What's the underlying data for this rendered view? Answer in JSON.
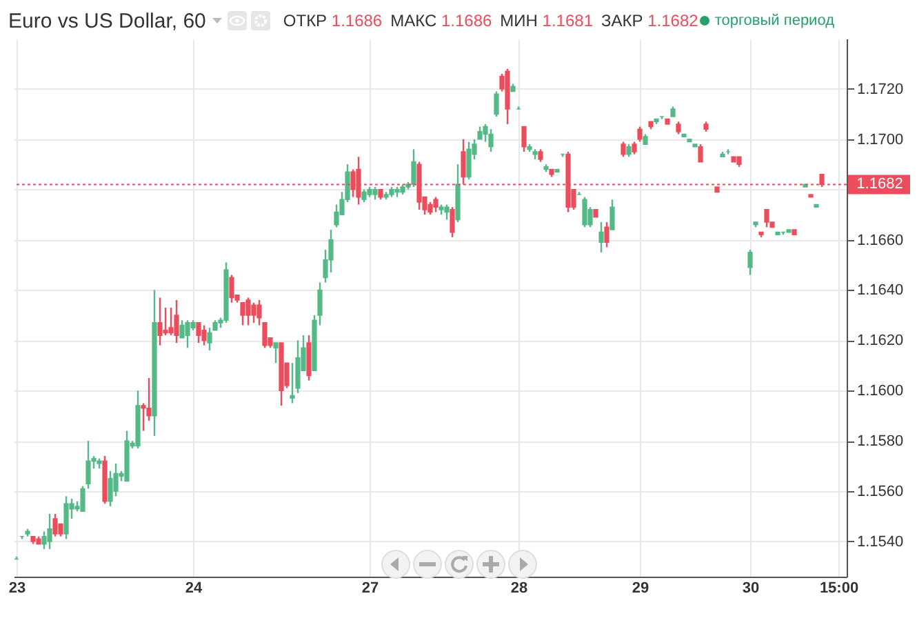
{
  "chart_data": {
    "type": "candlestick",
    "title": "Euro vs US Dollar, 60",
    "annotations": [
      "ОТКР 1.1686",
      "МАКС 1.1686",
      "МИН 1.1681",
      "ЗАКР 1.1682",
      "торговый период"
    ],
    "categories": [
      "23",
      null,
      null,
      null,
      null,
      null,
      null,
      null,
      null,
      null,
      null,
      null,
      null,
      null,
      null,
      null,
      null,
      null,
      null,
      null,
      null,
      null,
      null,
      null,
      null,
      null,
      null,
      null,
      null,
      null,
      null,
      null,
      "24",
      null,
      null,
      null,
      null,
      null,
      null,
      null,
      null,
      null,
      null,
      null,
      null,
      null,
      null,
      null,
      null,
      null,
      null,
      null,
      null,
      null,
      null,
      null,
      null,
      null,
      null,
      null,
      null,
      null,
      null,
      null,
      "27",
      null,
      null,
      null,
      null,
      null,
      null,
      null,
      null,
      null,
      null,
      null,
      null,
      null,
      null,
      null,
      null,
      null,
      null,
      null,
      null,
      null,
      null,
      null,
      null,
      null,
      null,
      "28",
      null,
      null,
      null,
      null,
      null,
      null,
      null,
      null,
      null,
      null,
      null,
      null,
      null,
      null,
      null,
      null,
      null,
      null,
      null,
      null,
      null,
      "29",
      null,
      null,
      null,
      null,
      null,
      null,
      null,
      null,
      null,
      null,
      null,
      null,
      null,
      null,
      null,
      null,
      null,
      null,
      null,
      "30",
      null,
      null,
      null,
      null,
      null,
      null,
      null,
      null,
      null,
      null,
      null,
      null,
      null,
      null,
      null,
      "15:00",
      null
    ],
    "ohlc": [
      [
        1.1533,
        1.1534,
        1.1533,
        1.1533
      ],
      [
        1.1542,
        1.1542,
        1.1541,
        1.1542
      ],
      [
        1.1543,
        1.1545,
        1.1542,
        1.1544
      ],
      [
        1.1542,
        1.1542,
        1.1539,
        1.154
      ],
      [
        1.1541,
        1.1542,
        1.1539,
        1.1539
      ],
      [
        1.1539,
        1.1544,
        1.1537,
        1.1542
      ],
      [
        1.154,
        1.1551,
        1.1537,
        1.1545
      ],
      [
        1.1549,
        1.1551,
        1.1542,
        1.1543
      ],
      [
        1.1547,
        1.1547,
        1.1542,
        1.1543
      ],
      [
        1.1543,
        1.1558,
        1.1541,
        1.1555
      ],
      [
        1.1553,
        1.1557,
        1.1549,
        1.1555
      ],
      [
        1.1553,
        1.1556,
        1.1552,
        1.1554
      ],
      [
        1.1552,
        1.1562,
        1.1552,
        1.1561
      ],
      [
        1.1563,
        1.158,
        1.1561,
        1.1572
      ],
      [
        1.1572,
        1.1574,
        1.1569,
        1.1573
      ],
      [
        1.1571,
        1.1573,
        1.1569,
        1.1572
      ],
      [
        1.1572,
        1.1574,
        1.1555,
        1.1556
      ],
      [
        1.1556,
        1.1568,
        1.1554,
        1.1565
      ],
      [
        1.156,
        1.1571,
        1.1558,
        1.1567
      ],
      [
        1.1566,
        1.1568,
        1.1564,
        1.1567
      ],
      [
        1.1564,
        1.1584,
        1.1564,
        1.158
      ],
      [
        1.1578,
        1.158,
        1.1577,
        1.1579
      ],
      [
        1.1578,
        1.16,
        1.1577,
        1.1594
      ],
      [
        1.1594,
        1.1595,
        1.1584,
        1.1593
      ],
      [
        1.1593,
        1.1605,
        1.1588,
        1.159
      ],
      [
        1.159,
        1.164,
        1.1582,
        1.1627
      ],
      [
        1.1627,
        1.1637,
        1.1618,
        1.1622
      ],
      [
        1.1624,
        1.1633,
        1.1622,
        1.1623
      ],
      [
        1.1625,
        1.1633,
        1.1622,
        1.1623
      ],
      [
        1.163,
        1.1636,
        1.1619,
        1.1622
      ],
      [
        1.1621,
        1.1628,
        1.1621,
        1.1626
      ],
      [
        1.1622,
        1.1628,
        1.1617,
        1.1627
      ],
      [
        1.1625,
        1.1628,
        1.1624,
        1.1627
      ],
      [
        1.1627,
        1.1627,
        1.1619,
        1.1622
      ],
      [
        1.1624,
        1.1626,
        1.1618,
        1.162
      ],
      [
        1.1619,
        1.1625,
        1.1616,
        1.1623
      ],
      [
        1.1624,
        1.1628,
        1.1624,
        1.1627
      ],
      [
        1.1627,
        1.1629,
        1.1625,
        1.1628
      ],
      [
        1.1628,
        1.1651,
        1.1627,
        1.1648
      ],
      [
        1.1645,
        1.1646,
        1.1635,
        1.1637
      ],
      [
        1.1638,
        1.1638,
        1.1635,
        1.1636
      ],
      [
        1.1635,
        1.1635,
        1.1626,
        1.163
      ],
      [
        1.1636,
        1.1637,
        1.1626,
        1.163
      ],
      [
        1.1634,
        1.1635,
        1.1627,
        1.163
      ],
      [
        1.1634,
        1.1636,
        1.1626,
        1.1629
      ],
      [
        1.1627,
        1.1627,
        1.1617,
        1.1618
      ],
      [
        1.1621,
        1.1621,
        1.1617,
        1.1618
      ],
      [
        1.1617,
        1.1619,
        1.1611,
        1.1619
      ],
      [
        1.1619,
        1.1619,
        1.1594,
        1.16
      ],
      [
        1.1611,
        1.1611,
        1.1601,
        1.1602
      ],
      [
        1.1597,
        1.1611,
        1.1595,
        1.1598
      ],
      [
        1.1601,
        1.162,
        1.1599,
        1.1613
      ],
      [
        1.1608,
        1.1622,
        1.1608,
        1.1617
      ],
      [
        1.1619,
        1.1622,
        1.1604,
        1.1606
      ],
      [
        1.1608,
        1.163,
        1.1608,
        1.1628
      ],
      [
        1.163,
        1.1643,
        1.1626,
        1.164
      ],
      [
        1.1645,
        1.1656,
        1.1643,
        1.1652
      ],
      [
        1.1652,
        1.1664,
        1.1647,
        1.166
      ],
      [
        1.1666,
        1.1674,
        1.1665,
        1.1671
      ],
      [
        1.167,
        1.1679,
        1.167,
        1.1676
      ],
      [
        1.1676,
        1.169,
        1.1675,
        1.1687
      ],
      [
        1.1687,
        1.1688,
        1.1677,
        1.168
      ],
      [
        1.1688,
        1.1693,
        1.1674,
        1.1677
      ],
      [
        1.1676,
        1.168,
        1.1675,
        1.1679
      ],
      [
        1.1678,
        1.1681,
        1.1677,
        1.168
      ],
      [
        1.1678,
        1.1681,
        1.1676,
        1.168
      ],
      [
        1.168,
        1.168,
        1.1676,
        1.1677
      ],
      [
        1.1677,
        1.1679,
        1.1676,
        1.1678
      ],
      [
        1.1678,
        1.1681,
        1.1677,
        1.168
      ],
      [
        1.1679,
        1.1681,
        1.1677,
        1.168
      ],
      [
        1.1679,
        1.1682,
        1.1678,
        1.1681
      ],
      [
        1.1681,
        1.1683,
        1.168,
        1.1682
      ],
      [
        1.1682,
        1.1696,
        1.1681,
        1.1691
      ],
      [
        1.169,
        1.1691,
        1.1672,
        1.1675
      ],
      [
        1.1677,
        1.1677,
        1.167,
        1.1672
      ],
      [
        1.1674,
        1.1675,
        1.167,
        1.1671
      ],
      [
        1.1676,
        1.1677,
        1.1671,
        1.1673
      ],
      [
        1.1672,
        1.1674,
        1.167,
        1.1673
      ],
      [
        1.1671,
        1.1674,
        1.1668,
        1.1673
      ],
      [
        1.1672,
        1.1673,
        1.1661,
        1.1663
      ],
      [
        1.1668,
        1.169,
        1.1667,
        1.1682
      ],
      [
        1.1695,
        1.17,
        1.1682,
        1.1685
      ],
      [
        1.1685,
        1.1699,
        1.1684,
        1.1696
      ],
      [
        1.1694,
        1.17,
        1.1692,
        1.1698
      ],
      [
        1.17,
        1.1705,
        1.17,
        1.1703
      ],
      [
        1.1702,
        1.1706,
        1.1699,
        1.1705
      ],
      [
        1.1697,
        1.1704,
        1.1695,
        1.1702
      ],
      [
        1.171,
        1.1719,
        1.1709,
        1.1718
      ],
      [
        1.1725,
        1.1726,
        1.1719,
        1.172
      ],
      [
        1.1727,
        1.1728,
        1.1706,
        1.1712
      ],
      [
        1.1719,
        1.1722,
        1.1719,
        1.1721
      ],
      [
        1.1712,
        1.1713,
        1.1712,
        1.1712
      ],
      [
        1.1705,
        1.1705,
        1.1695,
        1.1697
      ],
      [
        1.1696,
        1.1698,
        1.1695,
        1.1697
      ],
      [
        1.1694,
        1.1696,
        1.1692,
        1.1695
      ],
      [
        1.1695,
        1.1696,
        1.1691,
        1.1692
      ],
      [
        1.1688,
        1.169,
        1.1687,
        1.1689
      ],
      [
        1.1688,
        1.1688,
        1.1685,
        1.1686
      ],
      [
        1.1687,
        1.1688,
        1.1687,
        1.1688
      ],
      [
        1.1694,
        1.1694,
        1.1693,
        1.1694
      ],
      [
        1.1694,
        1.1695,
        1.1671,
        1.1673
      ],
      [
        1.168,
        1.168,
        1.1672,
        1.1673
      ],
      [
        1.1678,
        1.1679,
        1.1678,
        1.1678
      ],
      [
        1.1666,
        1.1677,
        1.1665,
        1.1676
      ],
      [
        1.1666,
        1.1673,
        1.1665,
        1.1672
      ],
      [
        1.1672,
        1.1672,
        1.1669,
        1.1669
      ],
      [
        1.1659,
        1.1667,
        1.1655,
        1.1663
      ],
      [
        1.1665,
        1.1667,
        1.1657,
        1.1659
      ],
      [
        1.1664,
        1.1676,
        1.1664,
        1.1673
      ],
      null,
      [
        1.1698,
        1.1699,
        1.1693,
        1.1694
      ],
      [
        1.1694,
        1.1698,
        1.1693,
        1.1697
      ],
      [
        1.1698,
        1.1699,
        1.1694,
        1.1695
      ],
      [
        1.1704,
        1.1705,
        1.1699,
        1.17
      ],
      [
        1.1698,
        1.1702,
        1.1698,
        1.1701
      ],
      [
        1.1707,
        1.1707,
        1.1704,
        1.1705
      ],
      [
        1.1707,
        1.1708,
        1.1706,
        1.1708
      ],
      [
        1.1709,
        1.1709,
        1.1708,
        1.1709
      ],
      [
        1.1708,
        1.1708,
        1.1706,
        1.1706
      ],
      [
        1.1709,
        1.1713,
        1.1709,
        1.1712
      ],
      [
        1.1706,
        1.1707,
        1.1702,
        1.1703
      ],
      [
        1.1701,
        1.1702,
        1.1701,
        1.1702
      ],
      [
        1.1699,
        1.17,
        1.1699,
        1.17
      ],
      [
        1.1697,
        1.1698,
        1.1697,
        1.1698
      ],
      [
        1.1697,
        1.1698,
        1.1691,
        1.1691
      ],
      [
        1.1706,
        1.1707,
        1.1703,
        1.1704
      ],
      null,
      [
        1.1681,
        1.1681,
        1.1679,
        1.1679
      ],
      [
        1.1693,
        1.1695,
        1.1693,
        1.1694
      ],
      [
        1.1695,
        1.1696,
        1.1694,
        1.1695
      ],
      [
        1.1693,
        1.1693,
        1.1691,
        1.1691
      ],
      [
        1.1693,
        1.1693,
        1.1689,
        1.169
      ],
      null,
      [
        1.1649,
        1.1656,
        1.1646,
        1.1655
      ],
      [
        1.1666,
        1.1667,
        1.1665,
        1.1667
      ],
      [
        1.1663,
        1.1663,
        1.1661,
        1.1662
      ],
      [
        1.1672,
        1.1672,
        1.1665,
        1.1667
      ],
      [
        1.1667,
        1.1667,
        1.1665,
        1.1665
      ],
      [
        1.1662,
        1.1663,
        1.1662,
        1.1663
      ],
      [
        1.1663,
        1.1663,
        1.1662,
        1.1663
      ],
      [
        1.1663,
        1.1664,
        1.1663,
        1.1664
      ],
      [
        1.1664,
        1.1664,
        1.1662,
        1.1662
      ],
      null,
      [
        1.1681,
        1.1682,
        1.1681,
        1.1682
      ],
      [
        1.1678,
        1.1678,
        1.1677,
        1.1677
      ],
      [
        1.1673,
        1.1674,
        1.1673,
        1.1674
      ],
      [
        1.1686,
        1.1686,
        1.1681,
        1.1682
      ],
      null,
      null,
      null,
      null
    ],
    "colors": [
      "#53b987",
      "#53b987",
      "#53b987",
      "#eb4d5c",
      "#eb4d5c",
      "#53b987",
      "#53b987",
      "#eb4d5c",
      "#eb4d5c",
      "#53b987",
      "#53b987",
      "#53b987",
      "#53b987",
      "#53b987",
      "#53b987",
      "#53b987",
      "#eb4d5c",
      "#53b987",
      "#53b987",
      "#53b987",
      "#53b987",
      "#53b987",
      "#53b987",
      "#eb4d5c",
      "#eb4d5c",
      "#53b987",
      "#eb4d5c",
      "#eb4d5c",
      "#eb4d5c",
      "#eb4d5c",
      "#53b987",
      "#53b987",
      "#53b987",
      "#eb4d5c",
      "#eb4d5c",
      "#53b987",
      "#53b987",
      "#53b987",
      "#53b987",
      "#eb4d5c",
      "#eb4d5c",
      "#eb4d5c",
      "#eb4d5c",
      "#eb4d5c",
      "#eb4d5c",
      "#eb4d5c",
      "#eb4d5c",
      "#53b987",
      "#eb4d5c",
      "#eb4d5c",
      "#53b987",
      "#53b987",
      "#53b987",
      "#eb4d5c",
      "#53b987",
      "#53b987",
      "#53b987",
      "#53b987",
      "#53b987",
      "#53b987",
      "#53b987",
      "#eb4d5c",
      "#eb4d5c",
      "#53b987",
      "#53b987",
      "#53b987",
      "#eb4d5c",
      "#53b987",
      "#53b987",
      "#53b987",
      "#53b987",
      "#53b987",
      "#53b987",
      "#eb4d5c",
      "#eb4d5c",
      "#eb4d5c",
      "#eb4d5c",
      "#53b987",
      "#53b987",
      "#eb4d5c",
      "#53b987",
      "#eb4d5c",
      "#53b987",
      "#53b987",
      "#53b987",
      "#53b987",
      "#53b987",
      "#53b987",
      "#eb4d5c",
      "#eb4d5c",
      "#53b987",
      "#53b987",
      "#eb4d5c",
      "#53b987",
      "#53b987",
      "#eb4d5c",
      "#53b987",
      "#eb4d5c",
      "#53b987",
      "#53b987",
      "#eb4d5c",
      "#eb4d5c",
      "#53b987",
      "#53b987",
      "#53b987",
      "#eb4d5c",
      "#53b987",
      "#eb4d5c",
      "#53b987",
      null,
      "#eb4d5c",
      "#53b987",
      "#eb4d5c",
      "#eb4d5c",
      "#53b987",
      "#eb4d5c",
      "#53b987",
      "#53b987",
      "#eb4d5c",
      "#53b987",
      "#eb4d5c",
      "#53b987",
      "#53b987",
      "#53b987",
      "#eb4d5c",
      "#eb4d5c",
      null,
      "#eb4d5c",
      "#53b987",
      "#53b987",
      "#eb4d5c",
      "#eb4d5c",
      null,
      "#53b987",
      "#53b987",
      "#eb4d5c",
      "#eb4d5c",
      "#eb4d5c",
      "#53b987",
      "#53b987",
      "#53b987",
      "#eb4d5c",
      null,
      "#53b987",
      "#eb4d5c",
      "#53b987",
      "#eb4d5c",
      null,
      null,
      null,
      null
    ],
    "ylim": [
      1.1526,
      1.174
    ],
    "yticks": [
      {
        "value": 1.154,
        "label": "1.1540"
      },
      {
        "value": 1.156,
        "label": "1.1560"
      },
      {
        "value": 1.158,
        "label": "1.1580"
      },
      {
        "value": 1.16,
        "label": "1.1600"
      },
      {
        "value": 1.162,
        "label": "1.1620"
      },
      {
        "value": 1.164,
        "label": "1.1640"
      },
      {
        "value": 1.166,
        "label": "1.1660"
      },
      {
        "value": 1.168,
        "label": null
      },
      {
        "value": 1.17,
        "label": "1.1700"
      },
      {
        "value": 1.172,
        "label": "1.1720"
      }
    ],
    "ref_lines": [
      {
        "axis": "y",
        "value": 1.1682,
        "label": "1.1682",
        "color": "#eb4d5c",
        "line_style": "dotted"
      }
    ],
    "grid": true
  }
}
